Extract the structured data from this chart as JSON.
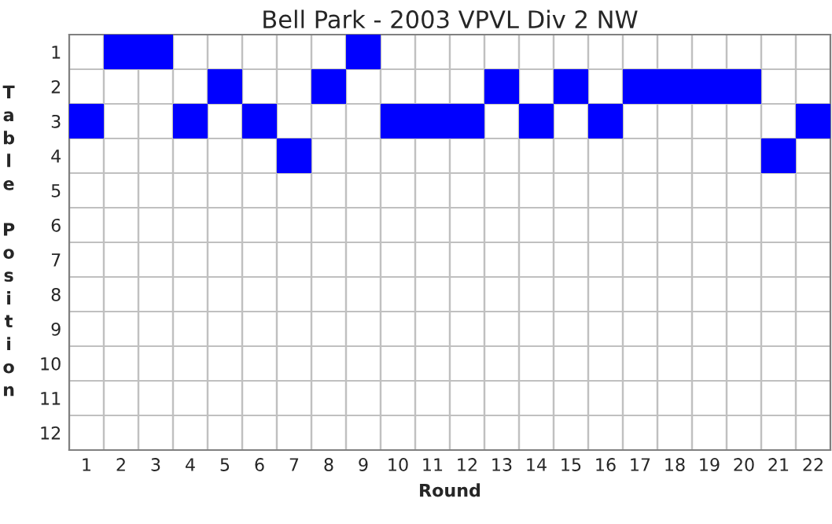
{
  "chart_data": {
    "type": "scatter",
    "title": "Bell Park - 2003 VPVL Div 2 NW",
    "xlabel": "Round",
    "ylabel": "Table Position",
    "categories": [
      "1",
      "2",
      "3",
      "4",
      "5",
      "6",
      "7",
      "8",
      "9",
      "10",
      "11",
      "12",
      "13",
      "14",
      "15",
      "16",
      "17",
      "18",
      "19",
      "20",
      "21",
      "22"
    ],
    "series": [
      {
        "color": "#0000ff",
        "values": [
          3,
          1,
          1,
          3,
          2,
          3,
          4,
          2,
          1,
          3,
          3,
          3,
          2,
          3,
          2,
          3,
          2,
          2,
          2,
          2,
          4,
          3
        ]
      }
    ],
    "ylim": [
      12.5,
      0.5
    ],
    "yticks": [
      1,
      2,
      3,
      4,
      5,
      6,
      7,
      8,
      9,
      10,
      11,
      12
    ],
    "marker": "square"
  }
}
